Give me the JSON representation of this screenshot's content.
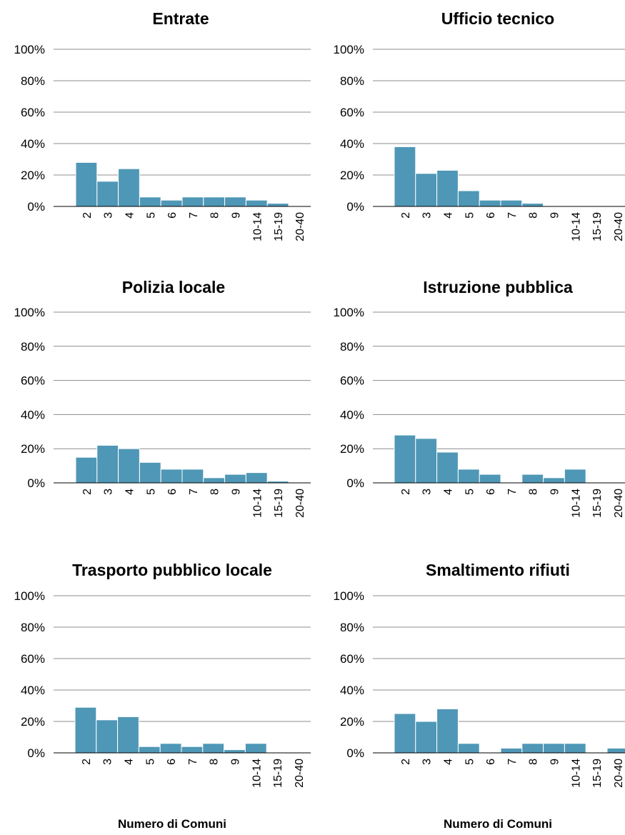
{
  "colors": {
    "bar": "#4f97b6",
    "grid": "#8c8c8c",
    "axis": "#000000"
  },
  "chart_data": [
    {
      "type": "bar",
      "title": "Entrate",
      "xlabel": "",
      "ylabel": "",
      "ylim": [
        0,
        100
      ],
      "yticks": [
        "0%",
        "20%",
        "40%",
        "60%",
        "80%",
        "100%"
      ],
      "categories": [
        "2",
        "3",
        "4",
        "5",
        "6",
        "7",
        "8",
        "9",
        "10-14",
        "15-19",
        "20-40"
      ],
      "values": [
        28,
        16,
        24,
        6,
        4,
        6,
        6,
        6,
        4,
        2,
        0
      ]
    },
    {
      "type": "bar",
      "title": "Ufficio tecnico",
      "xlabel": "",
      "ylabel": "",
      "ylim": [
        0,
        100
      ],
      "yticks": [
        "0%",
        "20%",
        "40%",
        "60%",
        "80%",
        "100%"
      ],
      "categories": [
        "2",
        "3",
        "4",
        "5",
        "6",
        "7",
        "8",
        "9",
        "10-14",
        "15-19",
        "20-40"
      ],
      "values": [
        38,
        21,
        23,
        10,
        4,
        4,
        2,
        0,
        0,
        0,
        0
      ]
    },
    {
      "type": "bar",
      "title": "Polizia locale",
      "xlabel": "",
      "ylabel": "",
      "ylim": [
        0,
        100
      ],
      "yticks": [
        "0%",
        "20%",
        "40%",
        "60%",
        "80%",
        "100%"
      ],
      "categories": [
        "2",
        "3",
        "4",
        "5",
        "6",
        "7",
        "8",
        "9",
        "10-14",
        "15-19",
        "20-40"
      ],
      "values": [
        15,
        22,
        20,
        12,
        8,
        8,
        3,
        5,
        6,
        1,
        0
      ]
    },
    {
      "type": "bar",
      "title": "Istruzione pubblica",
      "xlabel": "",
      "ylabel": "",
      "ylim": [
        0,
        100
      ],
      "yticks": [
        "0%",
        "20%",
        "40%",
        "60%",
        "80%",
        "100%"
      ],
      "categories": [
        "2",
        "3",
        "4",
        "5",
        "6",
        "7",
        "8",
        "9",
        "10-14",
        "15-19",
        "20-40"
      ],
      "values": [
        28,
        26,
        18,
        8,
        5,
        0,
        5,
        3,
        8,
        0,
        0
      ]
    },
    {
      "type": "bar",
      "title": "Trasporto pubblico locale",
      "xlabel": "Numero di Comuni",
      "ylabel": "",
      "ylim": [
        0,
        100
      ],
      "yticks": [
        "0%",
        "20%",
        "40%",
        "60%",
        "80%",
        "100%"
      ],
      "categories": [
        "2",
        "3",
        "4",
        "5",
        "6",
        "7",
        "8",
        "9",
        "10-14",
        "15-19",
        "20-40"
      ],
      "values": [
        29,
        21,
        23,
        4,
        6,
        4,
        6,
        2,
        6,
        0,
        0
      ]
    },
    {
      "type": "bar",
      "title": "Smaltimento rifiuti",
      "xlabel": "Numero di Comuni",
      "ylabel": "",
      "ylim": [
        0,
        100
      ],
      "yticks": [
        "0%",
        "20%",
        "40%",
        "60%",
        "80%",
        "100%"
      ],
      "categories": [
        "2",
        "3",
        "4",
        "5",
        "6",
        "7",
        "8",
        "9",
        "10-14",
        "15-19",
        "20-40"
      ],
      "values": [
        25,
        20,
        28,
        6,
        0,
        3,
        6,
        6,
        6,
        0,
        3
      ]
    }
  ]
}
